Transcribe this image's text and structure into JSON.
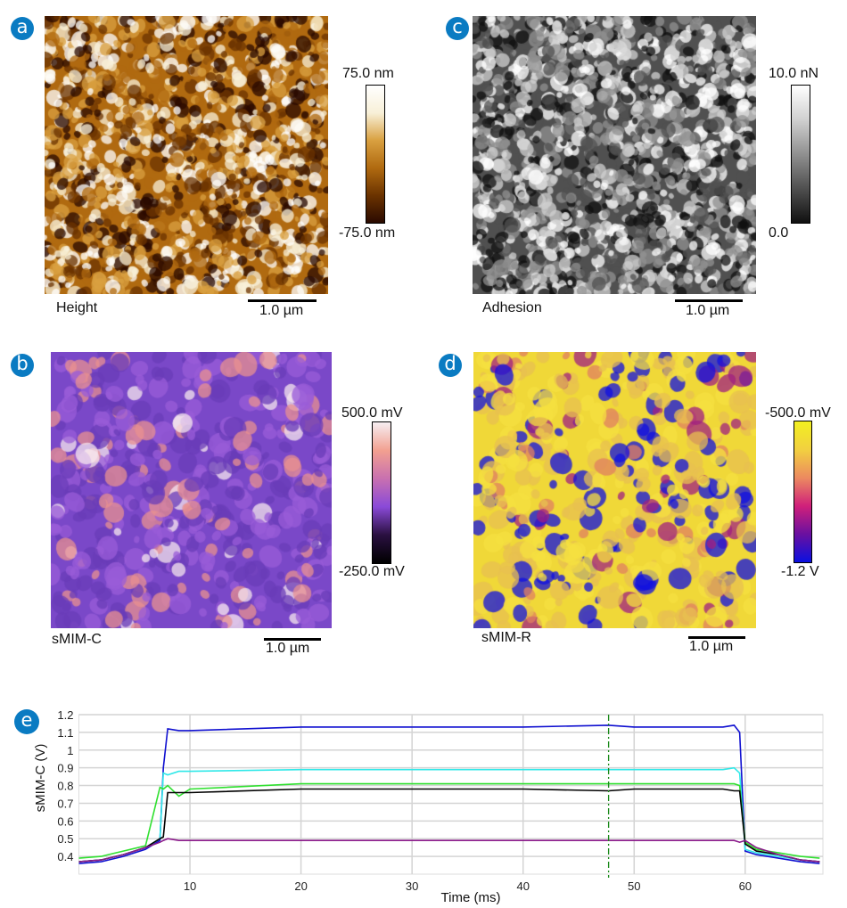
{
  "panels": [
    {
      "id": "a",
      "badge": "a",
      "channel": "Height",
      "cbar_max": "75.0 nm",
      "cbar_min": "-75.0 nm",
      "scale": "1.0 µm",
      "colormap": [
        "#2a0a00",
        "#6b3300",
        "#b06a10",
        "#d9a040",
        "#f8f0d8",
        "#ffffff"
      ]
    },
    {
      "id": "c",
      "badge": "c",
      "channel": "Adhesion",
      "cbar_max": "10.0 nN",
      "cbar_min": "0.0",
      "scale": "1.0 µm",
      "colormap": [
        "#101010",
        "#505050",
        "#909090",
        "#d0d0d0",
        "#ffffff"
      ]
    },
    {
      "id": "b",
      "badge": "b",
      "channel": "sMIM-C",
      "cbar_max": "500.0 mV",
      "cbar_min": "-250.0 mV",
      "scale": "1.0 µm",
      "colormap": [
        "#000000",
        "#2a1040",
        "#8a4ad8",
        "#c870b0",
        "#f2a090",
        "#f6eef2"
      ]
    },
    {
      "id": "d",
      "badge": "d",
      "channel": "sMIM-R",
      "cbar_max": "-500.0 mV",
      "cbar_min": "-1.2 V",
      "scale": "1.0 µm",
      "colormap": [
        "#0a10e0",
        "#6a10a0",
        "#d0207a",
        "#ec8a60",
        "#f2d040",
        "#f2f020"
      ]
    }
  ],
  "chart_data": {
    "badge": "e",
    "type": "line",
    "xlabel": "Time (ms)",
    "ylabel": "sMIM-C (V)",
    "xlim": [
      0,
      67
    ],
    "ylim": [
      0.3,
      1.2
    ],
    "xticks": [
      "10",
      "20",
      "30",
      "40",
      "50",
      "60"
    ],
    "yticks": [
      "0.4",
      "0.5",
      "0.6",
      "0.7",
      "0.8",
      "0.9",
      "1",
      "1.1",
      "1.2"
    ],
    "grid": true,
    "marker_line": {
      "x": 47.7,
      "color": "#1a8a1a",
      "style": "dash-dot"
    },
    "x": [
      0,
      2,
      4,
      6,
      7.3,
      7.6,
      8,
      9,
      10,
      20,
      30,
      40,
      47.7,
      50,
      58,
      59,
      59.5,
      60,
      61,
      63,
      65,
      66.7
    ],
    "series": [
      {
        "color": "#1010d0",
        "values": [
          0.36,
          0.37,
          0.4,
          0.44,
          0.49,
          0.9,
          1.12,
          1.11,
          1.11,
          1.13,
          1.13,
          1.13,
          1.14,
          1.13,
          1.13,
          1.14,
          1.1,
          0.43,
          0.41,
          0.39,
          0.37,
          0.36
        ]
      },
      {
        "color": "#30e8e8",
        "values": [
          0.37,
          0.38,
          0.41,
          0.45,
          0.5,
          0.87,
          0.86,
          0.88,
          0.88,
          0.89,
          0.89,
          0.89,
          0.89,
          0.89,
          0.89,
          0.9,
          0.87,
          0.44,
          0.42,
          0.4,
          0.38,
          0.37
        ]
      },
      {
        "color": "#30e030",
        "values": [
          0.39,
          0.4,
          0.43,
          0.46,
          0.79,
          0.78,
          0.8,
          0.74,
          0.78,
          0.81,
          0.81,
          0.81,
          0.81,
          0.81,
          0.81,
          0.81,
          0.8,
          0.48,
          0.44,
          0.42,
          0.4,
          0.39
        ]
      },
      {
        "color": "#000000",
        "values": [
          0.37,
          0.38,
          0.41,
          0.45,
          0.5,
          0.51,
          0.76,
          0.76,
          0.76,
          0.78,
          0.78,
          0.78,
          0.77,
          0.78,
          0.78,
          0.77,
          0.77,
          0.47,
          0.43,
          0.41,
          0.38,
          0.37
        ]
      },
      {
        "color": "#8a1a8a",
        "values": [
          0.37,
          0.38,
          0.41,
          0.45,
          0.48,
          0.49,
          0.5,
          0.49,
          0.49,
          0.49,
          0.49,
          0.49,
          0.49,
          0.49,
          0.49,
          0.49,
          0.48,
          0.49,
          0.45,
          0.41,
          0.38,
          0.37
        ]
      }
    ]
  }
}
